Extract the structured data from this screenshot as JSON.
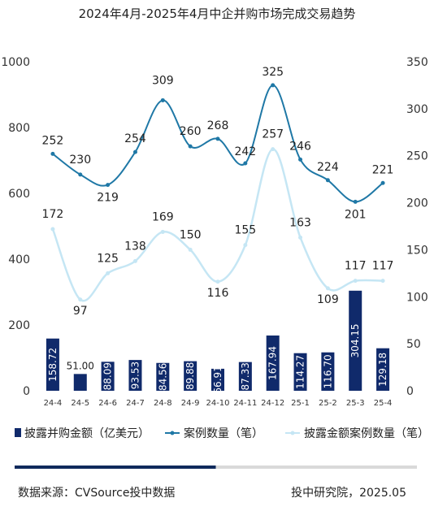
{
  "colors": {
    "bar": "#102a6b",
    "case_line": "#1f78a6",
    "disclosed_line": "#c5e6f4",
    "progress_fill": "#0f2a5c",
    "progress_track": "#d9d9d9"
  },
  "chart_data": {
    "type": "bar",
    "title": "2024年4月-2025年4月中企并购市场完成交易趋势",
    "categories": [
      "24-4",
      "24-5",
      "24-6",
      "24-7",
      "24-8",
      "24-9",
      "24-10",
      "24-11",
      "24-12",
      "25-1",
      "25-2",
      "25-3",
      "25-4"
    ],
    "left_axis": {
      "ylim": [
        0,
        1000
      ],
      "ticks": [
        "0",
        "200",
        "400",
        "600",
        "800",
        "1000"
      ]
    },
    "right_axis": {
      "ylim": [
        0,
        350
      ],
      "ticks": [
        "0",
        "50",
        "100",
        "150",
        "200",
        "250",
        "300",
        "350"
      ]
    },
    "series": [
      {
        "name": "披露并购金额（亿美元）",
        "type": "bar",
        "axis": "left",
        "values": [
          158.72,
          51.0,
          88.09,
          93.53,
          84.56,
          89.88,
          66.91,
          87.33,
          167.94,
          114.27,
          116.7,
          304.15,
          129.18
        ],
        "labels": [
          "158.72",
          "51.00",
          "88.09",
          "93.53",
          "84.56",
          "89.88",
          "66.91",
          "87.33",
          "167.94",
          "114.27",
          "116.70",
          "304.15",
          "129.18"
        ]
      },
      {
        "name": "案例数量（笔）",
        "type": "line",
        "axis": "right",
        "values": [
          252,
          230,
          219,
          254,
          309,
          260,
          268,
          242,
          325,
          246,
          224,
          201,
          221
        ],
        "labels": [
          "252",
          "230",
          "219",
          "254",
          "309",
          "260",
          "268",
          "242",
          "325",
          "246",
          "224",
          "201",
          "221"
        ]
      },
      {
        "name": "披露金额案例数量（笔）",
        "type": "line",
        "axis": "right",
        "values": [
          172,
          97,
          125,
          138,
          169,
          150,
          116,
          155,
          257,
          163,
          109,
          117,
          117
        ],
        "labels": [
          "172",
          "97",
          "125",
          "138",
          "169",
          "150",
          "116",
          "155",
          "257",
          "163",
          "109",
          "117",
          "117"
        ]
      }
    ],
    "legend_position": "bottom",
    "grid": false
  },
  "footer": {
    "source": "数据来源：CVSource投中数据",
    "publisher": "投中研究院，2025.05"
  },
  "progress": {
    "value": 0.5
  }
}
